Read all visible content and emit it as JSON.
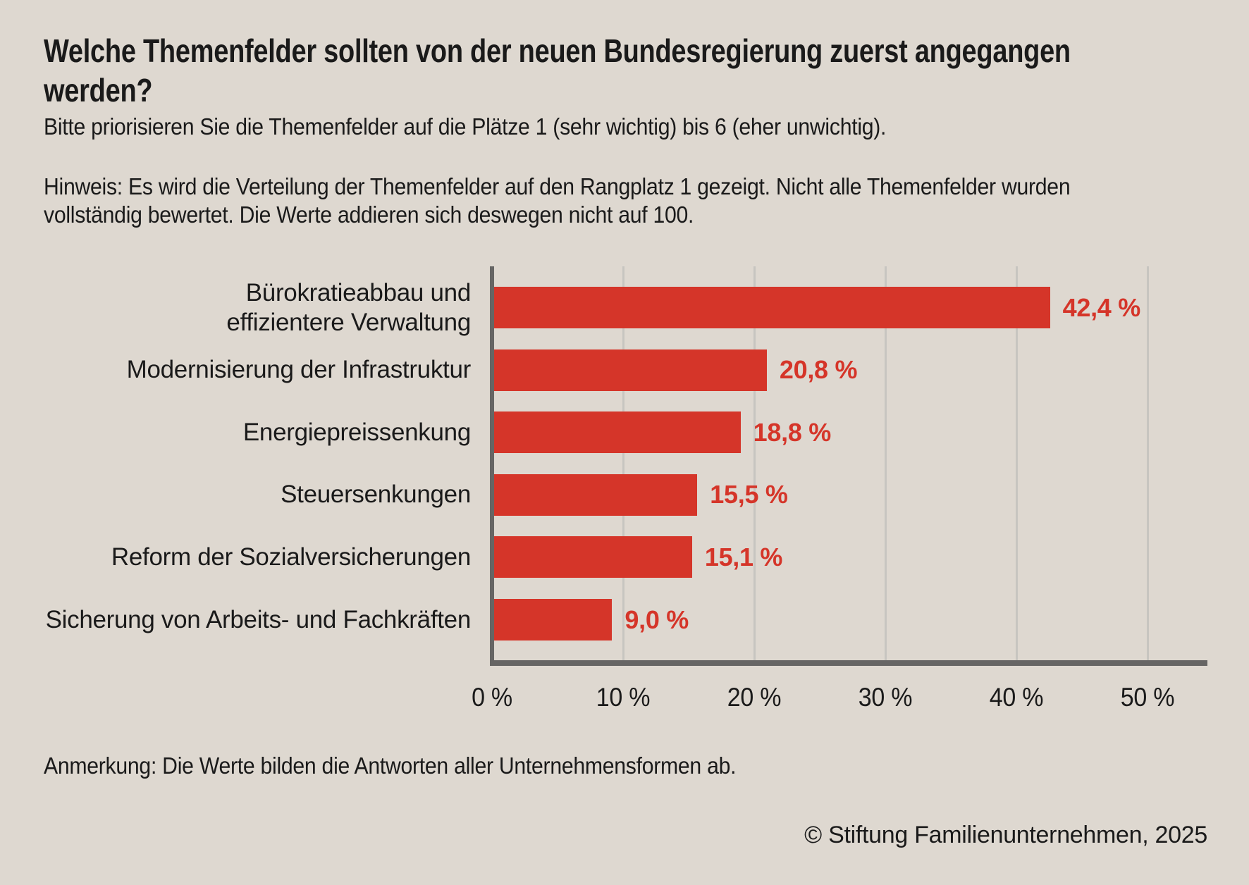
{
  "title": "Welche Themenfelder sollten von der neuen Bundesregierung zuerst angegangen\nwerden?",
  "subtitle": "Bitte priorisieren Sie die Themenfelder auf die Plätze 1 (sehr wichtig) bis 6 (eher unwichtig).",
  "note": "Hinweis: Es wird die Verteilung der Themenfelder auf den Rangplatz 1 gezeigt. Nicht alle Themenfelder wurden\nvollständig bewertet. Die Werte addieren sich deswegen nicht auf 100.",
  "footnote": "Anmerkung: Die Werte bilden die Antworten aller Unternehmensformen ab.",
  "copyright": "© Stiftung Familienunternehmen, 2025",
  "colors": {
    "background": "#ded8d0",
    "bar": "#d53529",
    "value_label": "#d53529",
    "axis": "#666564",
    "gridline": "#c7c5c0",
    "text": "#1a1a1a"
  },
  "chart_data": {
    "type": "bar",
    "orientation": "horizontal",
    "categories": [
      "Bürokratieabbau und\neffizientere Verwaltung",
      "Modernisierung der Infrastruktur",
      "Energiepreissenkung",
      "Steuersenkungen",
      "Reform der Sozialversicherungen",
      "Sicherung von Arbeits- und Fachkräften"
    ],
    "values": [
      42.4,
      20.8,
      18.8,
      15.5,
      15.1,
      9.0
    ],
    "value_labels": [
      "42,4 %",
      "20,8 %",
      "18,8 %",
      "15,5 %",
      "15,1 %",
      "9,0 %"
    ],
    "x_ticks": [
      "0 %",
      "10 %",
      "20 %",
      "30 %",
      "40 %",
      "50 %"
    ],
    "x_tick_values": [
      0,
      10,
      20,
      30,
      40,
      50
    ],
    "xlim": [
      0,
      54.7
    ],
    "grid": true,
    "legend": false
  }
}
